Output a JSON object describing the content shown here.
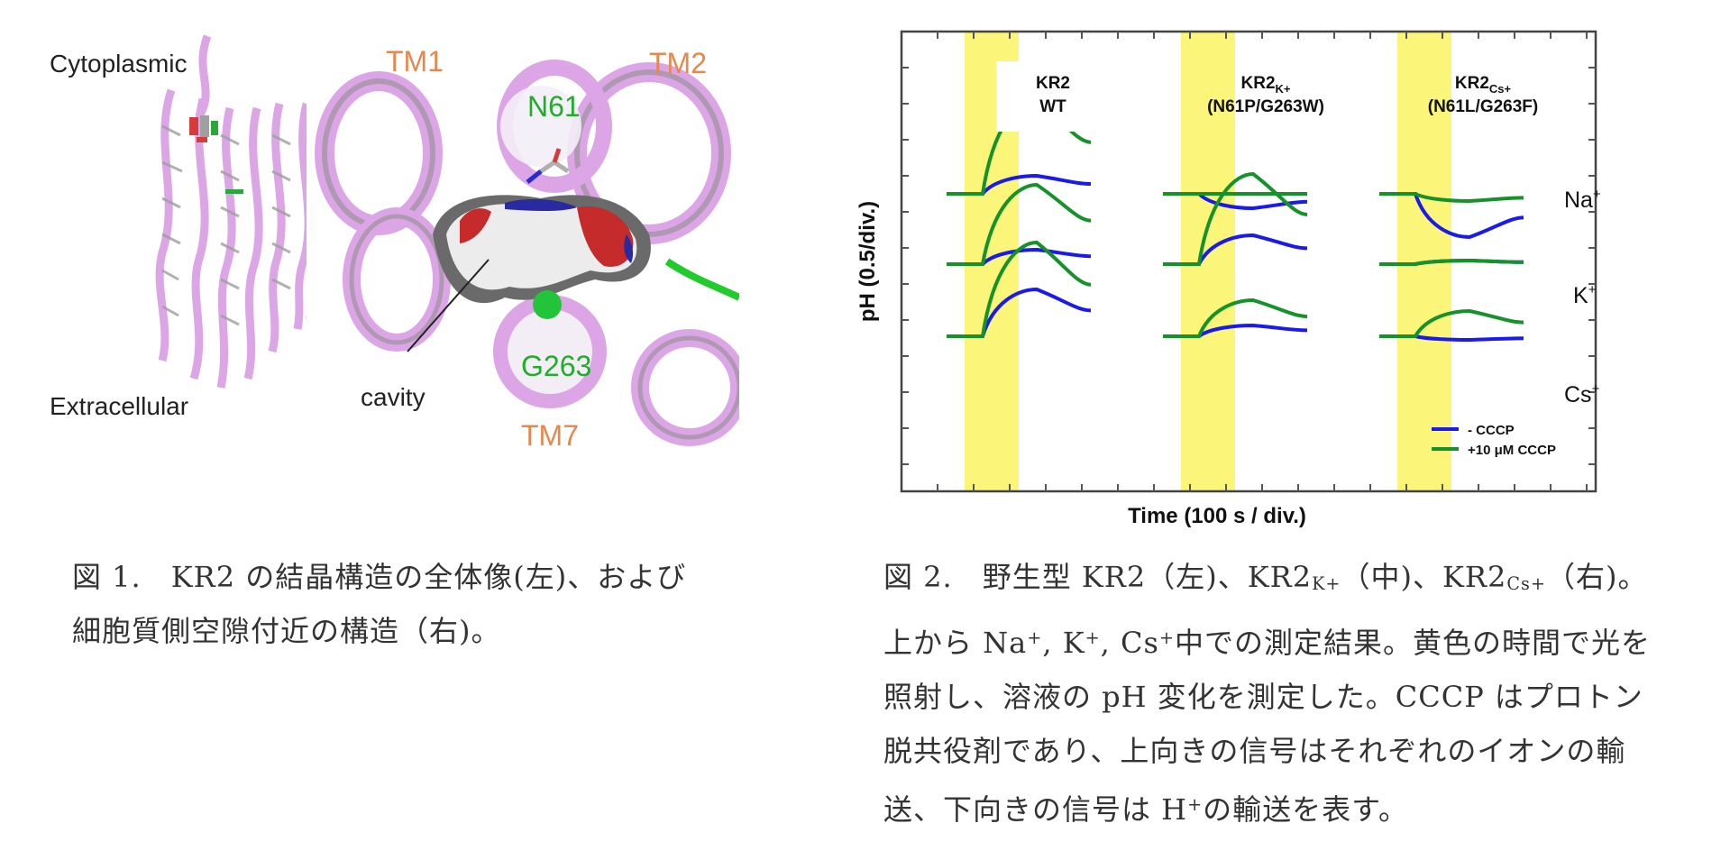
{
  "figure1": {
    "labels": {
      "cytoplasmic": "Cytoplasmic",
      "extracellular": "Extracellular",
      "cavity": "cavity",
      "tm1": "TM1",
      "tm2": "TM2",
      "tm7": "TM7",
      "n61": "N61",
      "g263": "G263"
    },
    "caption_line1": "図 1.　KR2 の結晶構造の全体像(左)、および",
    "caption_line2": "細胞質側空隙付近の構造（右)。"
  },
  "figure2": {
    "caption": {
      "l1a": "図 2.　野生型 KR2（左)、KR2",
      "l1b": "K+",
      "l1c": "（中)、KR2",
      "l1d": "Cs+",
      "l1e": "（右)。",
      "l2a": "上から Na",
      "l2b": "+",
      "l2c": ", K",
      "l2d": "+",
      "l2e": ", Cs",
      "l2f": "+",
      "l2g": "中での測定結果。黄色の時間で光を",
      "l3": "照射し、溶液の pH 変化を測定した。CCCP はプロトン",
      "l4": "脱共役剤であり、上向きの信号はそれぞれのイオンの輸",
      "l5a": "送、下向きの信号は H",
      "l5b": "+",
      "l5c": "の輸送を表す。"
    }
  },
  "chart_data": {
    "type": "line",
    "xlabel": "Time (100 s / div.)",
    "ylabel": "pH (0.5/div.)",
    "panels": [
      {
        "title_line1": "KR2",
        "title_line2": "WT",
        "title_sub": ""
      },
      {
        "title_line1": "KR2",
        "title_sub": "K+",
        "title_line2": "(N61P/G263W)"
      },
      {
        "title_line1": "KR2",
        "title_sub": "Cs+",
        "title_line2": "(N61L/G263F)"
      }
    ],
    "ions": [
      {
        "label": "Na",
        "sup": "+"
      },
      {
        "label": "K",
        "sup": "+"
      },
      {
        "label": "Cs",
        "sup": "+"
      }
    ],
    "legend": [
      {
        "name": "- CCCP",
        "color": "#1a1aee"
      },
      {
        "name": "+10 μM CCCP",
        "color": "#15922a"
      }
    ],
    "light_color": "#fbf57a",
    "light_window": [
      1,
      2.5
    ],
    "peak_changes_pH": {
      "no_cccp": [
        [
          0.25,
          -0.2,
          -0.6
        ],
        [
          0.2,
          0.4,
          0.05
        ],
        [
          0.65,
          0.15,
          -0.05
        ]
      ],
      "with_cccp": [
        [
          1.3,
          0.0,
          -0.1
        ],
        [
          1.1,
          1.25,
          0.05
        ],
        [
          1.3,
          0.5,
          0.35
        ]
      ]
    }
  }
}
